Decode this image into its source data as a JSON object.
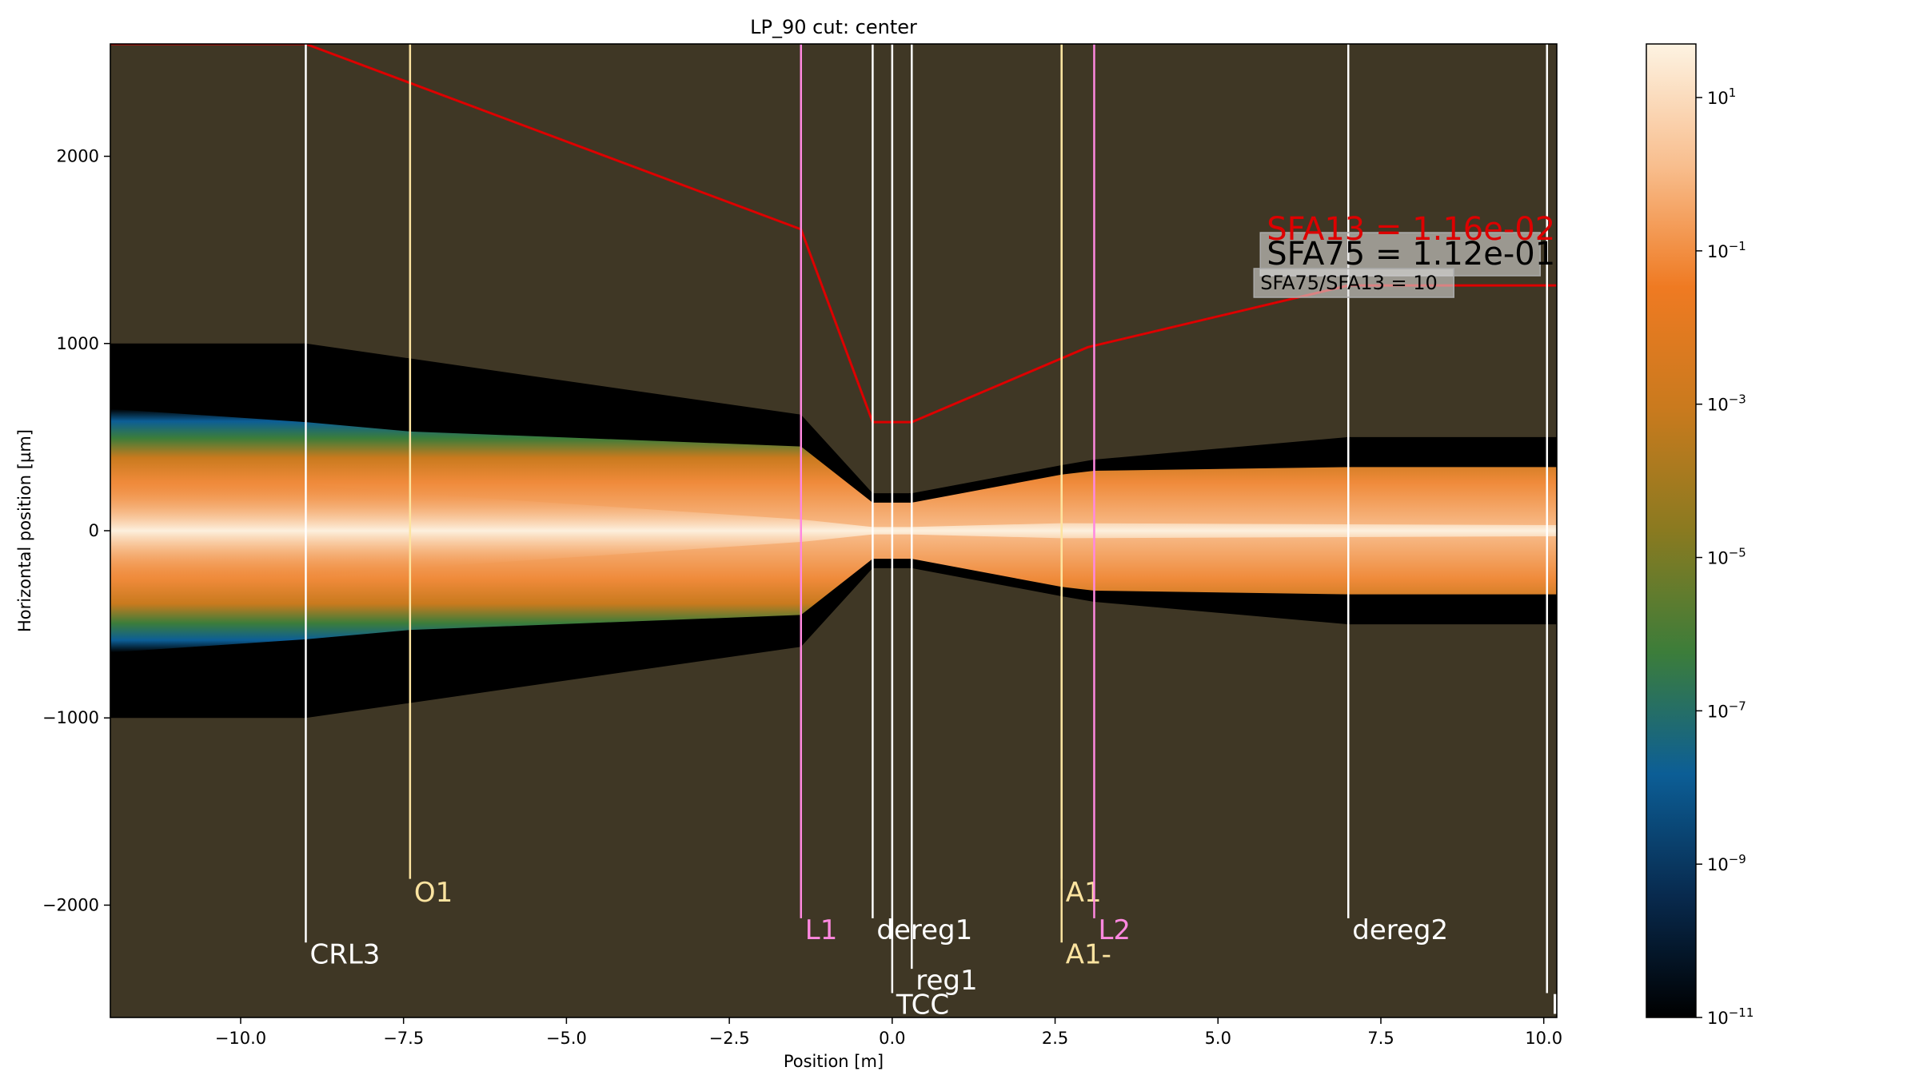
{
  "chart_data": {
    "type": "heatmap",
    "title": "LP_90 cut: center",
    "xlabel": "Position [m]",
    "ylabel": "Horizontal position [µm]",
    "xlim": [
      -12.0,
      10.2
    ],
    "ylim": [
      2600,
      -2600
    ],
    "x_ticks": [
      -10.0,
      -7.5,
      -5.0,
      -2.5,
      0.0,
      2.5,
      5.0,
      7.5,
      10.0
    ],
    "x_tick_labels": [
      "−10.0",
      "−7.5",
      "−5.0",
      "−2.5",
      "0.0",
      "2.5",
      "5.0",
      "7.5",
      "10.0"
    ],
    "y_ticks": [
      -2000,
      -1000,
      0,
      1000,
      2000
    ],
    "y_tick_labels": [
      "−2000",
      "−1000",
      "0",
      "1000",
      "2000"
    ],
    "grid": false,
    "background_color": "#3f3725",
    "colorbar": {
      "scale": "log",
      "range": [
        1e-11,
        50
      ],
      "colors": [
        "#000000",
        "#082a4e",
        "#0c5e96",
        "#3c7d3a",
        "#8a7a20",
        "#c97a1e",
        "#ef7a22",
        "#f8be8e",
        "#fdf3e2"
      ],
      "tick_values": [
        1e-11,
        1e-09,
        1e-07,
        1e-05,
        0.001,
        0.1,
        10
      ],
      "tick_bases": [
        "10",
        "10",
        "10",
        "10",
        "10",
        "10",
        "10"
      ],
      "tick_exponents": [
        "−11",
        "−9",
        "−7",
        "−5",
        "−3",
        "−1",
        "1"
      ]
    },
    "aperture": {
      "x": [
        -12.0,
        -9.0,
        -1.4,
        -0.3,
        0.3,
        2.6,
        3.1,
        7.0,
        10.2
      ],
      "y": [
        1000,
        1000,
        620,
        200,
        200,
        350,
        380,
        500,
        500
      ]
    },
    "beam_envelope": {
      "x": [
        -12.0,
        -9.0,
        -7.4,
        -1.4,
        -0.3,
        0.3,
        2.6,
        3.1,
        7.0,
        10.2
      ],
      "y": [
        650,
        580,
        530,
        450,
        150,
        150,
        300,
        320,
        340,
        340
      ]
    },
    "red_curve": {
      "color": "#dd0000",
      "x": [
        -12.0,
        -9.0,
        -1.4,
        -0.3,
        0.3,
        3.0,
        7.0,
        10.2
      ],
      "y": [
        2600,
        2600,
        1610,
        580,
        580,
        980,
        1310,
        1310
      ]
    },
    "elements": [
      {
        "label": "CRL3",
        "x": -9.0,
        "label_y": -2260,
        "line_end_y": -2200,
        "color": "#ffffff"
      },
      {
        "label": "O1",
        "x": -7.4,
        "label_y": -1930,
        "line_end_y": -1860,
        "color": "#fde4a0"
      },
      {
        "label": "L1",
        "x": -1.4,
        "label_y": -2130,
        "line_end_y": -2070,
        "color": "#ff88e0"
      },
      {
        "label": "dereg1",
        "x": -0.3,
        "label_y": -2130,
        "line_end_y": -2070,
        "color": "#ffffff"
      },
      {
        "label": "TCC",
        "x": 0.0,
        "label_y": -2530,
        "line_end_y": -2470,
        "color": "#ffffff"
      },
      {
        "label": "reg1",
        "x": 0.3,
        "label_y": -2400,
        "line_end_y": -2340,
        "color": "#ffffff"
      },
      {
        "label": "A1-",
        "x": 2.6,
        "label_y": -2260,
        "line_end_y": -2200,
        "color": "#fde4a0"
      },
      {
        "label": "A1",
        "x": 2.6,
        "label_y": -1930,
        "line_end_y": -1860,
        "color": "#fde4a0"
      },
      {
        "label": "L2",
        "x": 3.1,
        "label_y": -2130,
        "line_end_y": -2070,
        "color": "#ff88e0"
      },
      {
        "label": "dereg2",
        "x": 7.0,
        "label_y": -2130,
        "line_end_y": -2070,
        "color": "#ffffff"
      },
      {
        "label": "D",
        "x": 10.05,
        "label_y": -2530,
        "line_end_y": -2470,
        "color": "#ffffff"
      }
    ],
    "annotations": {
      "sfa13": {
        "text": "SFA13 = 1.16e-02",
        "color": "#dd0000"
      },
      "sfa75": {
        "text": "SFA75 = 1.12e-01",
        "color": "#000000"
      },
      "ratio": {
        "text": "SFA75/SFA13 = 10",
        "color": "#000000"
      }
    }
  }
}
